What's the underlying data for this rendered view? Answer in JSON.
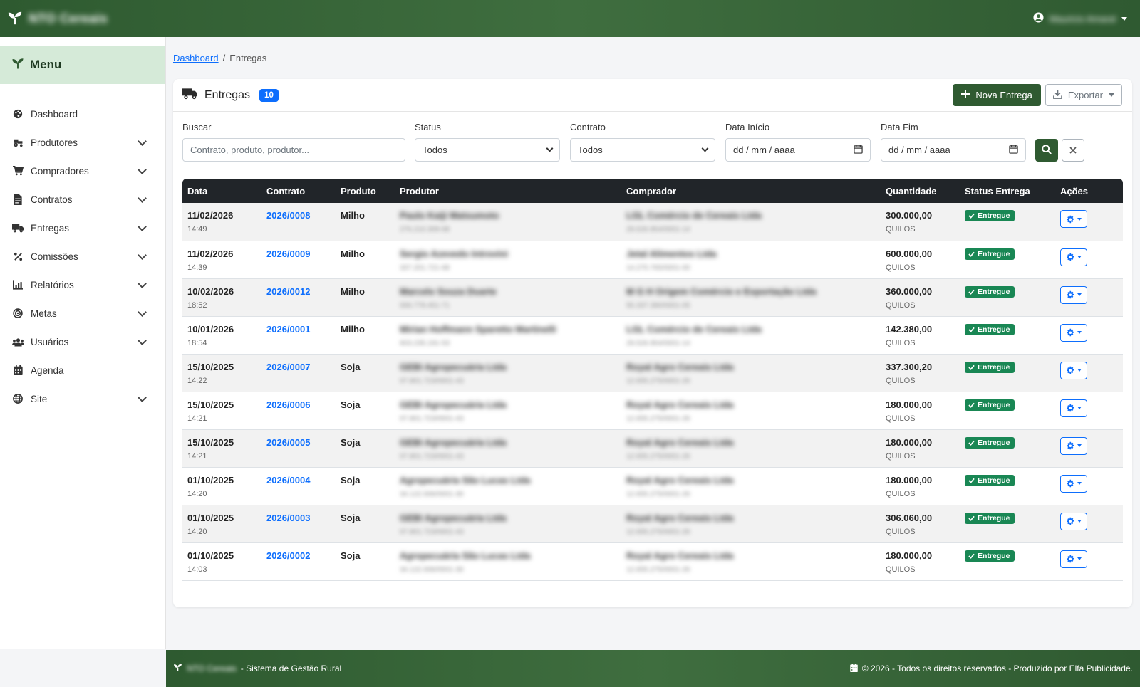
{
  "header": {
    "brand_name": "NTO Cereais",
    "user_name": "Mauricio Amaral"
  },
  "sidebar": {
    "title": "Menu",
    "items": [
      {
        "label": "Dashboard",
        "icon": "palette-icon",
        "has_submenu": false
      },
      {
        "label": "Produtores",
        "icon": "tractor-icon",
        "has_submenu": true
      },
      {
        "label": "Compradores",
        "icon": "cart-icon",
        "has_submenu": true
      },
      {
        "label": "Contratos",
        "icon": "file-contract-icon",
        "has_submenu": true
      },
      {
        "label": "Entregas",
        "icon": "truck-icon",
        "has_submenu": true
      },
      {
        "label": "Comissões",
        "icon": "percent-icon",
        "has_submenu": true
      },
      {
        "label": "Relatórios",
        "icon": "chart-icon",
        "has_submenu": true
      },
      {
        "label": "Metas",
        "icon": "target-icon",
        "has_submenu": true
      },
      {
        "label": "Usuários",
        "icon": "users-icon",
        "has_submenu": true
      },
      {
        "label": "Agenda",
        "icon": "calendar-icon",
        "has_submenu": false
      },
      {
        "label": "Site",
        "icon": "globe-icon",
        "has_submenu": true
      }
    ]
  },
  "breadcrumb": {
    "home": "Dashboard",
    "separator": "/",
    "current": "Entregas"
  },
  "card": {
    "title": "Entregas",
    "count": "10",
    "new_button": "Nova Entrega",
    "export_button": "Exportar"
  },
  "filters": {
    "search_label": "Buscar",
    "search_placeholder": "Contrato, produto, produtor...",
    "status_label": "Status",
    "status_value": "Todos",
    "contract_label": "Contrato",
    "contract_value": "Todos",
    "start_label": "Data Início",
    "start_placeholder": "dd / mm / aaaa",
    "end_label": "Data Fim",
    "end_placeholder": "dd / mm / aaaa"
  },
  "table": {
    "columns": [
      "Data",
      "Contrato",
      "Produto",
      "Produtor",
      "Comprador",
      "Quantidade",
      "Status Entrega",
      "Ações"
    ],
    "rows": [
      {
        "date": "11/02/2026",
        "time": "14:49",
        "contract": "2026/0008",
        "product": "Milho",
        "producer": "Paulo Kaiji Matsumoto",
        "producer_doc": "276.210.309-68",
        "buyer": "LGL Comércio de Cereais Ltda",
        "buyer_doc": "29.526.954/0001-14",
        "qty": "300.000,00",
        "unit": "QUILOS",
        "status": "Entregue"
      },
      {
        "date": "11/02/2026",
        "time": "14:39",
        "contract": "2026/0009",
        "product": "Milho",
        "producer": "Sergio Azevedo Introvini",
        "producer_doc": "337.201.721-68",
        "buyer": "Jetal Alimentos Ltda",
        "buyer_doc": "14.270.765/0001-00",
        "qty": "600.000,00",
        "unit": "QUILOS",
        "status": "Entregue"
      },
      {
        "date": "10/02/2026",
        "time": "18:52",
        "contract": "2026/0012",
        "product": "Milho",
        "producer": "Marcelo Souza Duarte",
        "producer_doc": "006.778.451-71",
        "buyer": "M G H Origem Comércio e Exportação Ltda",
        "buyer_doc": "55.337.390/0001-05",
        "qty": "360.000,00",
        "unit": "QUILOS",
        "status": "Entregue"
      },
      {
        "date": "10/01/2026",
        "time": "18:54",
        "contract": "2026/0001",
        "product": "Milho",
        "producer": "Mirian Hoffmann Sparetto Martinelli",
        "producer_doc": "603.235.191-53",
        "buyer": "LGL Comércio de Cereais Ltda",
        "buyer_doc": "29.526.954/0001-14",
        "qty": "142.380,00",
        "unit": "QUILOS",
        "status": "Entregue"
      },
      {
        "date": "15/10/2025",
        "time": "14:22",
        "contract": "2026/0007",
        "product": "Soja",
        "producer": "GEBI Agropecuária Ltda",
        "producer_doc": "07.801.723/0001-43",
        "buyer": "Royal Agro Cereais Ltda",
        "buyer_doc": "12.655.275/0001-26",
        "qty": "337.300,20",
        "unit": "QUILOS",
        "status": "Entregue"
      },
      {
        "date": "15/10/2025",
        "time": "14:21",
        "contract": "2026/0006",
        "product": "Soja",
        "producer": "GEBI Agropecuária Ltda",
        "producer_doc": "07.801.723/0001-43",
        "buyer": "Royal Agro Cereais Ltda",
        "buyer_doc": "12.655.275/0001-26",
        "qty": "180.000,00",
        "unit": "QUILOS",
        "status": "Entregue"
      },
      {
        "date": "15/10/2025",
        "time": "14:21",
        "contract": "2026/0005",
        "product": "Soja",
        "producer": "GEBI Agropecuária Ltda",
        "producer_doc": "07.801.723/0001-43",
        "buyer": "Royal Agro Cereais Ltda",
        "buyer_doc": "12.655.275/0001-26",
        "qty": "180.000,00",
        "unit": "QUILOS",
        "status": "Entregue"
      },
      {
        "date": "01/10/2025",
        "time": "14:20",
        "contract": "2026/0004",
        "product": "Soja",
        "producer": "Agropecuária São Lucas Ltda",
        "producer_doc": "34.122.936/0001-30",
        "buyer": "Royal Agro Cereais Ltda",
        "buyer_doc": "12.655.275/0001-26",
        "qty": "180.000,00",
        "unit": "QUILOS",
        "status": "Entregue"
      },
      {
        "date": "01/10/2025",
        "time": "14:20",
        "contract": "2026/0003",
        "product": "Soja",
        "producer": "GEBI Agropecuária Ltda",
        "producer_doc": "07.801.723/0001-43",
        "buyer": "Royal Agro Cereais Ltda",
        "buyer_doc": "12.655.275/0001-26",
        "qty": "306.060,00",
        "unit": "QUILOS",
        "status": "Entregue"
      },
      {
        "date": "01/10/2025",
        "time": "14:03",
        "contract": "2026/0002",
        "product": "Soja",
        "producer": "Agropecuária São Lucas Ltda",
        "producer_doc": "34.122.936/0001-30",
        "buyer": "Royal Agro Cereais Ltda",
        "buyer_doc": "12.655.275/0001-26",
        "qty": "180.000,00",
        "unit": "QUILOS",
        "status": "Entregue"
      }
    ]
  },
  "footer": {
    "brand": "NTO Cereais",
    "tagline": "- Sistema de Gestão Rural",
    "copyright": "© 2026 - Todos os direitos reservados - Produzido por Elfa Publicidade."
  },
  "colors": {
    "brand_green": "#2f5a31",
    "menu_highlight": "#d5ead8",
    "link_blue": "#0d6efd",
    "status_green": "#198754",
    "table_header": "#212529"
  }
}
